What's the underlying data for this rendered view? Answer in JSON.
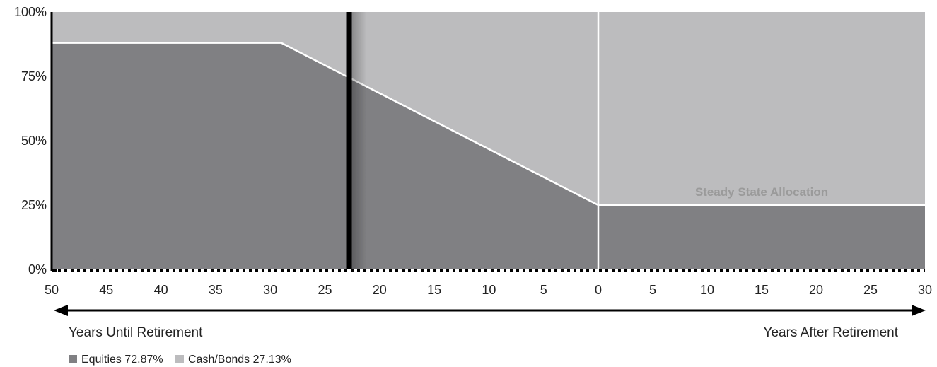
{
  "chart_data": {
    "type": "area",
    "title": "",
    "xlabel_left": "Years Until Retirement",
    "xlabel_right": "Years After Retirement",
    "ylabel": "",
    "x_ticks": [
      "50",
      "45",
      "40",
      "35",
      "30",
      "25",
      "20",
      "15",
      "10",
      "5",
      "0",
      "5",
      "10",
      "15",
      "20",
      "25",
      "30"
    ],
    "y_ticks": [
      "0%",
      "25%",
      "50%",
      "75%",
      "100%"
    ],
    "ylim": [
      0,
      100
    ],
    "x_range_before": [
      50,
      0
    ],
    "x_range_after": [
      0,
      30
    ],
    "series": [
      {
        "name": "Equities",
        "color": "#808083",
        "phases": [
          {
            "phase": "before",
            "points": [
              [
                50,
                88
              ],
              [
                29,
                88
              ],
              [
                0,
                25
              ]
            ]
          },
          {
            "phase": "after",
            "points": [
              [
                0,
                25
              ],
              [
                30,
                25
              ]
            ]
          }
        ]
      },
      {
        "name": "Cash/Bonds",
        "color": "#bcbcbe",
        "fills_to": 100
      }
    ],
    "current_marker": {
      "years_until_retirement": 22.8,
      "equities_pct": 72.87,
      "cash_bonds_pct": 27.13
    },
    "annotation": "Steady State Allocation",
    "legend": [
      {
        "label": "Equities 72.87%",
        "color": "#808083"
      },
      {
        "label": "Cash/Bonds 27.13%",
        "color": "#bcbcbe"
      }
    ],
    "legend_position": "bottom-left",
    "grid": false
  }
}
